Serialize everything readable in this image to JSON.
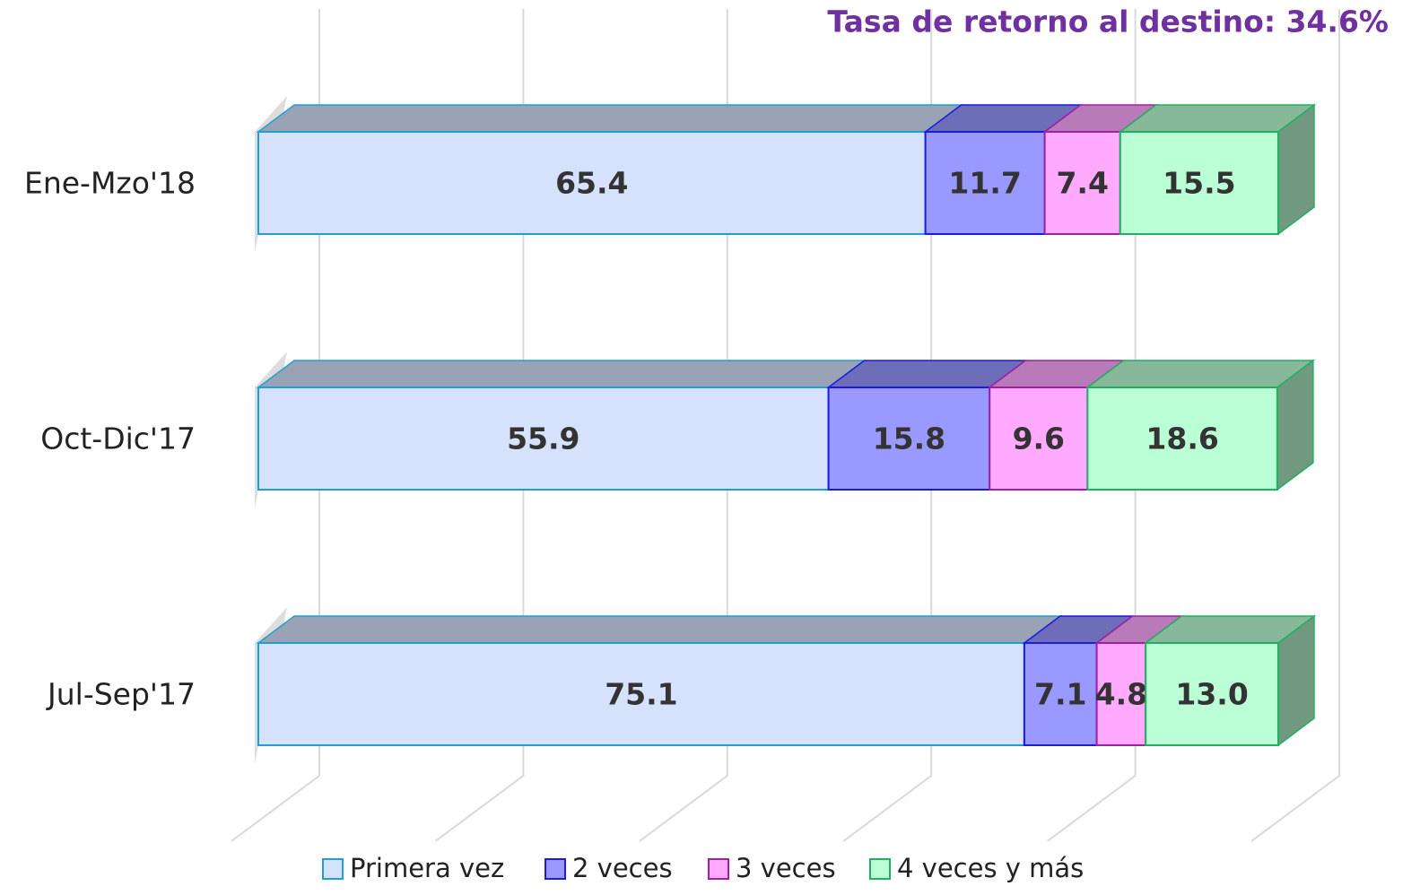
{
  "chart_data": {
    "type": "bar3d_stacked_horizontal",
    "title": "Tasa de retorno al destino: 34.6%",
    "categories": [
      "Ene-Mzo'18",
      "Oct-Dic'17",
      "Jul-Sep'17"
    ],
    "series": [
      {
        "name": "Primera vez",
        "color": "#d6e2fc",
        "border_color": "#1fa0d4",
        "values": [
          65.4,
          55.9,
          75.1
        ]
      },
      {
        "name": "2 veces",
        "color": "#9999ff",
        "border_color": "#1a1ae0",
        "values": [
          11.7,
          15.8,
          7.1
        ]
      },
      {
        "name": "3 veces",
        "color": "#ffaaff",
        "border_color": "#a020a0",
        "values": [
          7.4,
          9.6,
          4.8
        ]
      },
      {
        "name": "4 veces y más",
        "color": "#bbffd6",
        "border_color": "#20b060",
        "values": [
          15.5,
          18.6,
          13
        ],
        "value_labels": [
          "15.5",
          "18.6",
          "13.0"
        ]
      }
    ],
    "xlim": [
      0,
      100
    ],
    "xticks": [
      0,
      20,
      40,
      60,
      80,
      100
    ],
    "grid": true
  }
}
